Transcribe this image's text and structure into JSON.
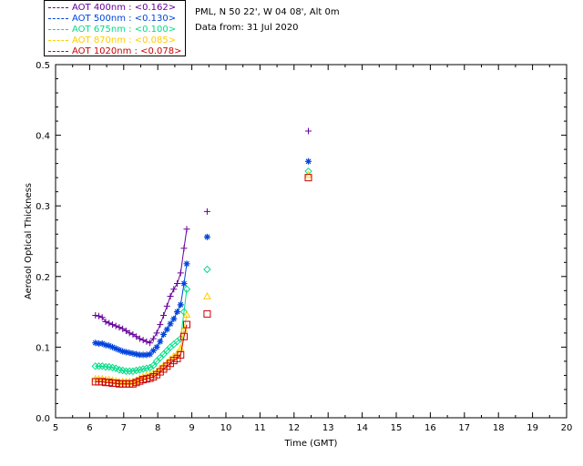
{
  "info": {
    "location": "PML, N 50 22', W 04 08', Alt 0m",
    "data_from": "Data from: 31 Jul 2020"
  },
  "chart_data": {
    "type": "scatter",
    "xlabel": "Time (GMT)",
    "ylabel": "Aerosol Optical Thickness",
    "xlim": [
      5,
      20
    ],
    "ylim": [
      0.0,
      0.5
    ],
    "xticks": [
      "5",
      "6",
      "7",
      "8",
      "9",
      "10",
      "11",
      "12",
      "13",
      "14",
      "15",
      "16",
      "17",
      "18",
      "19",
      "20"
    ],
    "yticks": [
      "0.0",
      "0.1",
      "0.2",
      "0.3",
      "0.4",
      "0.5"
    ],
    "grid": false,
    "legend_position": "top-left",
    "series": [
      {
        "name": "AOT  400nm : <0.162>",
        "color": "#660099",
        "marker": "plus",
        "line_until": 8.85,
        "points": [
          [
            6.17,
            0.145
          ],
          [
            6.27,
            0.144
          ],
          [
            6.37,
            0.142
          ],
          [
            6.47,
            0.136
          ],
          [
            6.57,
            0.134
          ],
          [
            6.67,
            0.132
          ],
          [
            6.77,
            0.13
          ],
          [
            6.87,
            0.128
          ],
          [
            6.97,
            0.126
          ],
          [
            7.07,
            0.123
          ],
          [
            7.17,
            0.12
          ],
          [
            7.27,
            0.118
          ],
          [
            7.37,
            0.115
          ],
          [
            7.47,
            0.112
          ],
          [
            7.57,
            0.11
          ],
          [
            7.67,
            0.108
          ],
          [
            7.77,
            0.106
          ],
          [
            7.87,
            0.112
          ],
          [
            7.97,
            0.12
          ],
          [
            8.07,
            0.132
          ],
          [
            8.17,
            0.145
          ],
          [
            8.27,
            0.158
          ],
          [
            8.37,
            0.172
          ],
          [
            8.47,
            0.182
          ],
          [
            8.57,
            0.19
          ],
          [
            8.67,
            0.205
          ],
          [
            8.77,
            0.24
          ],
          [
            8.85,
            0.267
          ],
          [
            9.45,
            0.292
          ],
          [
            12.42,
            0.406
          ]
        ]
      },
      {
        "name": "AOT  500nm : <0.130>",
        "color": "#0044dd",
        "marker": "asterisk",
        "line_until": 8.85,
        "points": [
          [
            6.17,
            0.106
          ],
          [
            6.27,
            0.105
          ],
          [
            6.37,
            0.105
          ],
          [
            6.47,
            0.103
          ],
          [
            6.57,
            0.102
          ],
          [
            6.67,
            0.1
          ],
          [
            6.77,
            0.098
          ],
          [
            6.87,
            0.096
          ],
          [
            6.97,
            0.094
          ],
          [
            7.07,
            0.093
          ],
          [
            7.17,
            0.092
          ],
          [
            7.27,
            0.091
          ],
          [
            7.37,
            0.09
          ],
          [
            7.47,
            0.089
          ],
          [
            7.57,
            0.089
          ],
          [
            7.67,
            0.089
          ],
          [
            7.77,
            0.09
          ],
          [
            7.87,
            0.095
          ],
          [
            7.97,
            0.1
          ],
          [
            8.07,
            0.108
          ],
          [
            8.17,
            0.118
          ],
          [
            8.27,
            0.125
          ],
          [
            8.37,
            0.133
          ],
          [
            8.47,
            0.14
          ],
          [
            8.57,
            0.15
          ],
          [
            8.67,
            0.16
          ],
          [
            8.77,
            0.19
          ],
          [
            8.85,
            0.218
          ],
          [
            9.45,
            0.256
          ],
          [
            12.42,
            0.363
          ]
        ]
      },
      {
        "name": "AOT  675nm : <0.100>",
        "color": "#00dd88",
        "marker": "diamond",
        "line_until": 8.85,
        "points": [
          [
            6.17,
            0.073
          ],
          [
            6.27,
            0.073
          ],
          [
            6.37,
            0.073
          ],
          [
            6.47,
            0.072
          ],
          [
            6.57,
            0.072
          ],
          [
            6.67,
            0.071
          ],
          [
            6.77,
            0.07
          ],
          [
            6.87,
            0.068
          ],
          [
            6.97,
            0.067
          ],
          [
            7.07,
            0.066
          ],
          [
            7.17,
            0.066
          ],
          [
            7.27,
            0.066
          ],
          [
            7.37,
            0.067
          ],
          [
            7.47,
            0.068
          ],
          [
            7.57,
            0.069
          ],
          [
            7.67,
            0.07
          ],
          [
            7.77,
            0.071
          ],
          [
            7.87,
            0.074
          ],
          [
            7.97,
            0.08
          ],
          [
            8.07,
            0.085
          ],
          [
            8.17,
            0.09
          ],
          [
            8.27,
            0.095
          ],
          [
            8.37,
            0.1
          ],
          [
            8.47,
            0.104
          ],
          [
            8.57,
            0.108
          ],
          [
            8.67,
            0.112
          ],
          [
            8.77,
            0.15
          ],
          [
            8.85,
            0.182
          ],
          [
            9.45,
            0.21
          ],
          [
            12.42,
            0.349
          ]
        ]
      },
      {
        "name": "AOT  870nm : <0.085>",
        "color": "#ffcc00",
        "marker": "triangle",
        "line_until": 8.85,
        "points": [
          [
            6.17,
            0.055
          ],
          [
            6.27,
            0.055
          ],
          [
            6.37,
            0.055
          ],
          [
            6.47,
            0.054
          ],
          [
            6.57,
            0.054
          ],
          [
            6.67,
            0.053
          ],
          [
            6.77,
            0.052
          ],
          [
            6.87,
            0.051
          ],
          [
            6.97,
            0.051
          ],
          [
            7.07,
            0.051
          ],
          [
            7.17,
            0.051
          ],
          [
            7.27,
            0.051
          ],
          [
            7.37,
            0.053
          ],
          [
            7.47,
            0.056
          ],
          [
            7.57,
            0.058
          ],
          [
            7.67,
            0.06
          ],
          [
            7.77,
            0.061
          ],
          [
            7.87,
            0.063
          ],
          [
            7.97,
            0.065
          ],
          [
            8.07,
            0.07
          ],
          [
            8.17,
            0.074
          ],
          [
            8.27,
            0.078
          ],
          [
            8.37,
            0.083
          ],
          [
            8.47,
            0.087
          ],
          [
            8.57,
            0.091
          ],
          [
            8.67,
            0.098
          ],
          [
            8.77,
            0.125
          ],
          [
            8.85,
            0.146
          ],
          [
            9.45,
            0.172
          ],
          [
            12.42,
            0.344
          ]
        ]
      },
      {
        "name": "AOT 1020nm : <0.078>",
        "color": "#cc0000",
        "marker": "square",
        "line_until": 8.85,
        "points": [
          [
            6.17,
            0.051
          ],
          [
            6.27,
            0.051
          ],
          [
            6.37,
            0.051
          ],
          [
            6.47,
            0.05
          ],
          [
            6.57,
            0.05
          ],
          [
            6.67,
            0.049
          ],
          [
            6.77,
            0.049
          ],
          [
            6.87,
            0.048
          ],
          [
            6.97,
            0.048
          ],
          [
            7.07,
            0.048
          ],
          [
            7.17,
            0.048
          ],
          [
            7.27,
            0.048
          ],
          [
            7.37,
            0.05
          ],
          [
            7.47,
            0.052
          ],
          [
            7.57,
            0.054
          ],
          [
            7.67,
            0.055
          ],
          [
            7.77,
            0.056
          ],
          [
            7.87,
            0.058
          ],
          [
            7.97,
            0.061
          ],
          [
            8.07,
            0.065
          ],
          [
            8.17,
            0.069
          ],
          [
            8.27,
            0.073
          ],
          [
            8.37,
            0.077
          ],
          [
            8.47,
            0.081
          ],
          [
            8.57,
            0.084
          ],
          [
            8.67,
            0.089
          ],
          [
            8.77,
            0.115
          ],
          [
            8.85,
            0.132
          ],
          [
            9.45,
            0.147
          ],
          [
            12.42,
            0.34
          ]
        ]
      }
    ]
  }
}
